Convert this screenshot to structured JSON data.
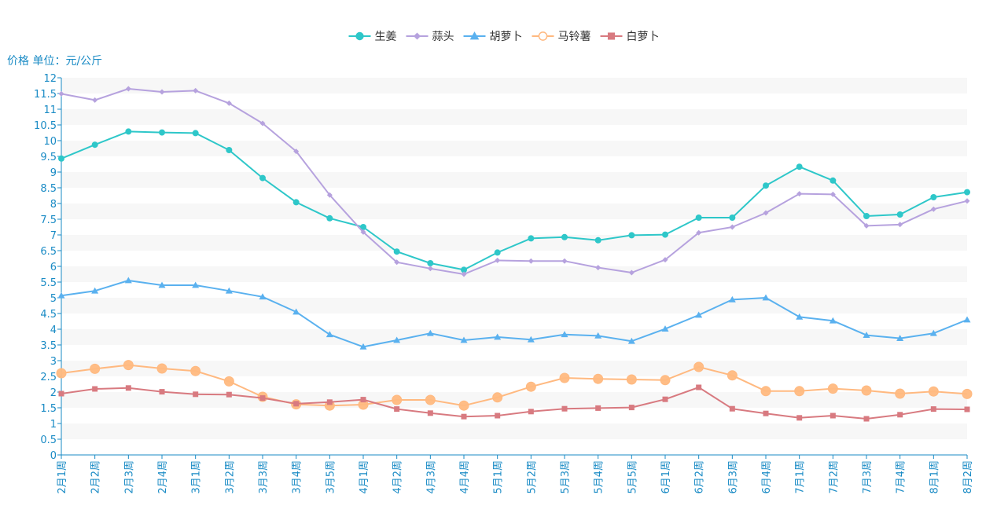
{
  "chart_data": {
    "type": "line",
    "ylabel": "价格 单位：元/公斤",
    "ylim": [
      0,
      12
    ],
    "ytick_step": 0.5,
    "legend_position": "top-center",
    "grid": "horizontal-bands",
    "categories": [
      "2月1周",
      "2月2周",
      "2月3周",
      "2月4周",
      "3月1周",
      "3月2周",
      "3月3周",
      "3月4周",
      "3月5周",
      "4月1周",
      "4月2周",
      "4月3周",
      "4月4周",
      "5月1周",
      "5月2周",
      "5月3周",
      "5月4周",
      "5月5周",
      "6月1周",
      "6月2周",
      "6月3周",
      "6月4周",
      "7月1周",
      "7月2周",
      "7月3周",
      "7月4周",
      "8月1周",
      "8月2周"
    ],
    "series": [
      {
        "name": "生姜",
        "color": "#2ec7c9",
        "marker": "circle",
        "values": [
          9.43,
          9.87,
          10.29,
          10.26,
          10.24,
          9.7,
          8.81,
          8.04,
          7.53,
          7.25,
          6.47,
          6.1,
          5.89,
          6.44,
          6.89,
          6.93,
          6.83,
          6.99,
          7.01,
          7.55,
          7.55,
          8.57,
          9.17,
          8.73,
          7.6,
          7.65,
          8.2,
          8.36
        ]
      },
      {
        "name": "蒜头",
        "color": "#b6a2de",
        "marker": "diamond",
        "values": [
          11.49,
          11.29,
          11.65,
          11.55,
          11.59,
          11.19,
          10.55,
          9.66,
          8.27,
          7.09,
          6.13,
          5.93,
          5.75,
          6.19,
          6.17,
          6.17,
          5.96,
          5.8,
          6.21,
          7.07,
          7.25,
          7.7,
          8.31,
          8.29,
          7.29,
          7.33,
          7.82,
          8.08
        ]
      },
      {
        "name": "胡萝卜",
        "color": "#5ab1ef",
        "marker": "triangle",
        "values": [
          5.07,
          5.22,
          5.55,
          5.4,
          5.4,
          5.22,
          5.03,
          4.55,
          3.83,
          3.44,
          3.65,
          3.87,
          3.65,
          3.75,
          3.67,
          3.83,
          3.79,
          3.62,
          4.01,
          4.45,
          4.94,
          5.0,
          4.39,
          4.27,
          3.81,
          3.71,
          3.87,
          4.3
        ]
      },
      {
        "name": "马铃薯",
        "color": "#ffb980",
        "marker": "hollow-circle",
        "values": [
          2.6,
          2.74,
          2.86,
          2.75,
          2.67,
          2.34,
          1.85,
          1.61,
          1.57,
          1.6,
          1.75,
          1.75,
          1.57,
          1.83,
          2.17,
          2.45,
          2.42,
          2.4,
          2.38,
          2.8,
          2.53,
          2.03,
          2.03,
          2.11,
          2.05,
          1.95,
          2.02,
          1.94
        ]
      },
      {
        "name": "白萝卜",
        "color": "#d87a80",
        "marker": "square",
        "values": [
          1.95,
          2.1,
          2.13,
          2.01,
          1.93,
          1.92,
          1.81,
          1.63,
          1.68,
          1.76,
          1.46,
          1.33,
          1.22,
          1.25,
          1.38,
          1.47,
          1.49,
          1.51,
          1.77,
          2.15,
          1.47,
          1.32,
          1.18,
          1.25,
          1.15,
          1.28,
          1.46,
          1.45
        ]
      }
    ]
  }
}
